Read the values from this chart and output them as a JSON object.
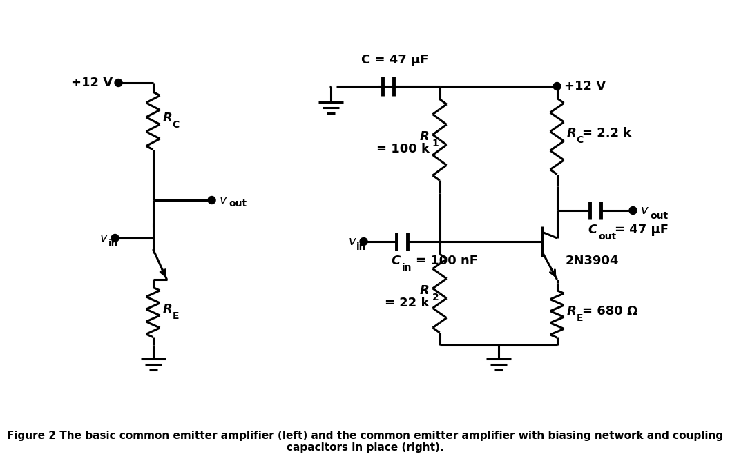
{
  "fig_width": 10.24,
  "fig_height": 6.61,
  "bg_color": "#ffffff",
  "line_color": "#000000",
  "line_width": 2.2,
  "caption": "Figure 2 The basic common emitter amplifier (left) and the common emitter amplifier with biasing network and coupling\ncapacitors in place (right).",
  "caption_fontsize": 11,
  "label_fontsize": 13
}
